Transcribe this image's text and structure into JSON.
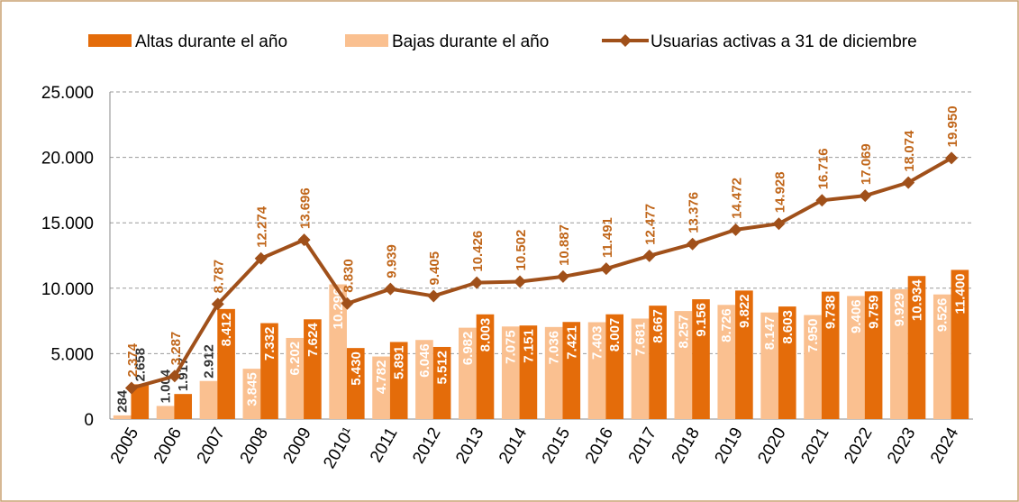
{
  "chart_data": {
    "type": "bar-line",
    "categories": [
      "2005",
      "2006",
      "2007",
      "2008",
      "2009",
      "2010¹",
      "2011",
      "2012",
      "2013",
      "2014",
      "2015",
      "2016",
      "2017",
      "2018",
      "2019",
      "2020",
      "2021",
      "2022",
      "2023",
      "2024"
    ],
    "series": [
      {
        "name": "Altas durante el año",
        "color": "#e46c0a",
        "kind": "bar",
        "values": [
          2658,
          1917,
          8412,
          7332,
          7624,
          5430,
          5891,
          5512,
          8003,
          7151,
          7421,
          8007,
          8667,
          9156,
          9822,
          8603,
          9738,
          9759,
          10934,
          11400
        ],
        "value_labels": [
          "2.658",
          "1.917",
          "8.412",
          "7.332",
          "7.624",
          "5.430",
          "5.891",
          "5.512",
          "8.003",
          "7.151",
          "7.421",
          "8.007",
          "8.667",
          "9.156",
          "9.822",
          "8.603",
          "9.738",
          "9.759",
          "10.934",
          "11.400"
        ]
      },
      {
        "name": "Bajas durante el año",
        "color": "#fac090",
        "kind": "bar",
        "values": [
          284,
          1004,
          2912,
          3845,
          6202,
          10296,
          4782,
          6046,
          6982,
          7075,
          7036,
          7403,
          7681,
          8257,
          8726,
          8147,
          7950,
          9406,
          9929,
          9526
        ],
        "value_labels": [
          "284",
          "1.004",
          "2.912",
          "3.845",
          "6.202",
          "10.296",
          "4.782",
          "6.046",
          "6.982",
          "7.075",
          "7.036",
          "7.403",
          "7.681",
          "8.257",
          "8.726",
          "8.147",
          "7.950",
          "9.406",
          "9.929",
          "9.526"
        ]
      },
      {
        "name": "Usuarias activas a 31 de diciembre",
        "color": "#a0501a",
        "kind": "line",
        "values": [
          2374,
          3287,
          8787,
          12274,
          13696,
          8830,
          9939,
          9405,
          10426,
          10502,
          10887,
          11491,
          12477,
          13376,
          14472,
          14928,
          16716,
          17069,
          18074,
          19950
        ],
        "value_labels": [
          "2.374",
          "3.287",
          "8.787",
          "12.274",
          "13.696",
          "8.830",
          "9.939",
          "9.405",
          "10.426",
          "10.502",
          "10.887",
          "11.491",
          "12.477",
          "13.376",
          "14.472",
          "14.928",
          "16.716",
          "17.069",
          "18.074",
          "19.950"
        ]
      }
    ],
    "ylim": [
      0,
      25000
    ],
    "yticks": [
      0,
      {
        "value": 5000,
        "label": "5.000"
      },
      {
        "value": 10000,
        "label": "10.000"
      },
      {
        "value": 15000,
        "label": "15.000"
      },
      {
        "value": 20000,
        "label": "20.000"
      },
      {
        "value": 25000,
        "label": "25.000"
      }
    ],
    "grid": true,
    "legend": "top"
  }
}
